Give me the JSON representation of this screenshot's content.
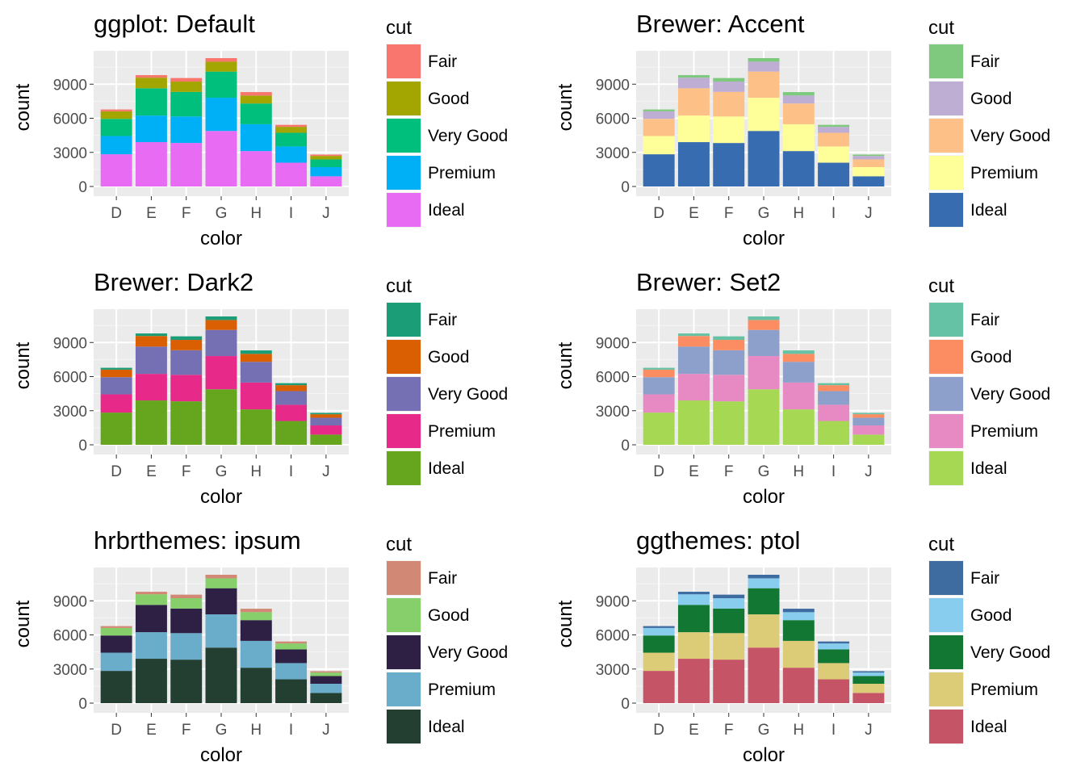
{
  "chart_data": [
    {
      "type": "bar",
      "title": "ggplot: Default",
      "xlabel": "color",
      "ylabel": "count",
      "legend_title": "cut",
      "legend_position": "right",
      "grid": true,
      "categories": [
        "D",
        "E",
        "F",
        "G",
        "H",
        "I",
        "J"
      ],
      "yticks": [
        0,
        3000,
        6000,
        9000
      ],
      "ylim": [
        0,
        11292
      ],
      "series": [
        {
          "name": "Ideal",
          "color": "#E76BF3",
          "values": [
            2834,
            3903,
            3826,
            4884,
            3115,
            2093,
            896
          ]
        },
        {
          "name": "Premium",
          "color": "#00B0F6",
          "values": [
            1603,
            2337,
            2331,
            2924,
            2360,
            1428,
            808
          ]
        },
        {
          "name": "Very Good",
          "color": "#00BF7D",
          "values": [
            1513,
            2400,
            2164,
            2299,
            1824,
            1204,
            678
          ]
        },
        {
          "name": "Good",
          "color": "#A3A500",
          "values": [
            662,
            933,
            909,
            871,
            702,
            522,
            307
          ]
        },
        {
          "name": "Fair",
          "color": "#F8766D",
          "values": [
            163,
            224,
            312,
            314,
            303,
            175,
            119
          ]
        }
      ]
    },
    {
      "type": "bar",
      "title": "Brewer: Accent",
      "xlabel": "color",
      "ylabel": "count",
      "legend_title": "cut",
      "legend_position": "right",
      "grid": true,
      "categories": [
        "D",
        "E",
        "F",
        "G",
        "H",
        "I",
        "J"
      ],
      "yticks": [
        0,
        3000,
        6000,
        9000
      ],
      "ylim": [
        0,
        11292
      ],
      "series": [
        {
          "name": "Ideal",
          "color": "#386CB0",
          "values": [
            2834,
            3903,
            3826,
            4884,
            3115,
            2093,
            896
          ]
        },
        {
          "name": "Premium",
          "color": "#FFFF99",
          "values": [
            1603,
            2337,
            2331,
            2924,
            2360,
            1428,
            808
          ]
        },
        {
          "name": "Very Good",
          "color": "#FDC086",
          "values": [
            1513,
            2400,
            2164,
            2299,
            1824,
            1204,
            678
          ]
        },
        {
          "name": "Good",
          "color": "#BEAED4",
          "values": [
            662,
            933,
            909,
            871,
            702,
            522,
            307
          ]
        },
        {
          "name": "Fair",
          "color": "#7FC97F",
          "values": [
            163,
            224,
            312,
            314,
            303,
            175,
            119
          ]
        }
      ]
    },
    {
      "type": "bar",
      "title": "Brewer: Dark2",
      "xlabel": "color",
      "ylabel": "count",
      "legend_title": "cut",
      "legend_position": "right",
      "grid": true,
      "categories": [
        "D",
        "E",
        "F",
        "G",
        "H",
        "I",
        "J"
      ],
      "yticks": [
        0,
        3000,
        6000,
        9000
      ],
      "ylim": [
        0,
        11292
      ],
      "series": [
        {
          "name": "Ideal",
          "color": "#66A61E",
          "values": [
            2834,
            3903,
            3826,
            4884,
            3115,
            2093,
            896
          ]
        },
        {
          "name": "Premium",
          "color": "#E7298A",
          "values": [
            1603,
            2337,
            2331,
            2924,
            2360,
            1428,
            808
          ]
        },
        {
          "name": "Very Good",
          "color": "#7570B3",
          "values": [
            1513,
            2400,
            2164,
            2299,
            1824,
            1204,
            678
          ]
        },
        {
          "name": "Good",
          "color": "#D95F02",
          "values": [
            662,
            933,
            909,
            871,
            702,
            522,
            307
          ]
        },
        {
          "name": "Fair",
          "color": "#1B9E77",
          "values": [
            163,
            224,
            312,
            314,
            303,
            175,
            119
          ]
        }
      ]
    },
    {
      "type": "bar",
      "title": "Brewer: Set2",
      "xlabel": "color",
      "ylabel": "count",
      "legend_title": "cut",
      "legend_position": "right",
      "grid": true,
      "categories": [
        "D",
        "E",
        "F",
        "G",
        "H",
        "I",
        "J"
      ],
      "yticks": [
        0,
        3000,
        6000,
        9000
      ],
      "ylim": [
        0,
        11292
      ],
      "series": [
        {
          "name": "Ideal",
          "color": "#A6D854",
          "values": [
            2834,
            3903,
            3826,
            4884,
            3115,
            2093,
            896
          ]
        },
        {
          "name": "Premium",
          "color": "#E78AC3",
          "values": [
            1603,
            2337,
            2331,
            2924,
            2360,
            1428,
            808
          ]
        },
        {
          "name": "Very Good",
          "color": "#8DA0CB",
          "values": [
            1513,
            2400,
            2164,
            2299,
            1824,
            1204,
            678
          ]
        },
        {
          "name": "Good",
          "color": "#FC8D62",
          "values": [
            662,
            933,
            909,
            871,
            702,
            522,
            307
          ]
        },
        {
          "name": "Fair",
          "color": "#66C2A5",
          "values": [
            163,
            224,
            312,
            314,
            303,
            175,
            119
          ]
        }
      ]
    },
    {
      "type": "bar",
      "title": "hrbrthemes: ipsum",
      "xlabel": "color",
      "ylabel": "count",
      "legend_title": "cut",
      "legend_position": "right",
      "grid": true,
      "categories": [
        "D",
        "E",
        "F",
        "G",
        "H",
        "I",
        "J"
      ],
      "yticks": [
        0,
        3000,
        6000,
        9000
      ],
      "ylim": [
        0,
        11292
      ],
      "series": [
        {
          "name": "Ideal",
          "color": "#233F31",
          "values": [
            2834,
            3903,
            3826,
            4884,
            3115,
            2093,
            896
          ]
        },
        {
          "name": "Premium",
          "color": "#6AADCB",
          "values": [
            1603,
            2337,
            2331,
            2924,
            2360,
            1428,
            808
          ]
        },
        {
          "name": "Very Good",
          "color": "#2E1F45",
          "values": [
            1513,
            2400,
            2164,
            2299,
            1824,
            1204,
            678
          ]
        },
        {
          "name": "Good",
          "color": "#86CF6A",
          "values": [
            662,
            933,
            909,
            871,
            702,
            522,
            307
          ]
        },
        {
          "name": "Fair",
          "color": "#D18975",
          "values": [
            163,
            224,
            312,
            314,
            303,
            175,
            119
          ]
        }
      ]
    },
    {
      "type": "bar",
      "title": "ggthemes: ptol",
      "xlabel": "color",
      "ylabel": "count",
      "legend_title": "cut",
      "legend_position": "right",
      "grid": true,
      "categories": [
        "D",
        "E",
        "F",
        "G",
        "H",
        "I",
        "J"
      ],
      "yticks": [
        0,
        3000,
        6000,
        9000
      ],
      "ylim": [
        0,
        11292
      ],
      "series": [
        {
          "name": "Ideal",
          "color": "#C55466",
          "values": [
            2834,
            3903,
            3826,
            4884,
            3115,
            2093,
            896
          ]
        },
        {
          "name": "Premium",
          "color": "#DDCC77",
          "values": [
            1603,
            2337,
            2331,
            2924,
            2360,
            1428,
            808
          ]
        },
        {
          "name": "Very Good",
          "color": "#117733",
          "values": [
            1513,
            2400,
            2164,
            2299,
            1824,
            1204,
            678
          ]
        },
        {
          "name": "Good",
          "color": "#88CCEE",
          "values": [
            662,
            933,
            909,
            871,
            702,
            522,
            307
          ]
        },
        {
          "name": "Fair",
          "color": "#3E6BA0",
          "values": [
            163,
            224,
            312,
            314,
            303,
            175,
            119
          ]
        }
      ]
    }
  ]
}
